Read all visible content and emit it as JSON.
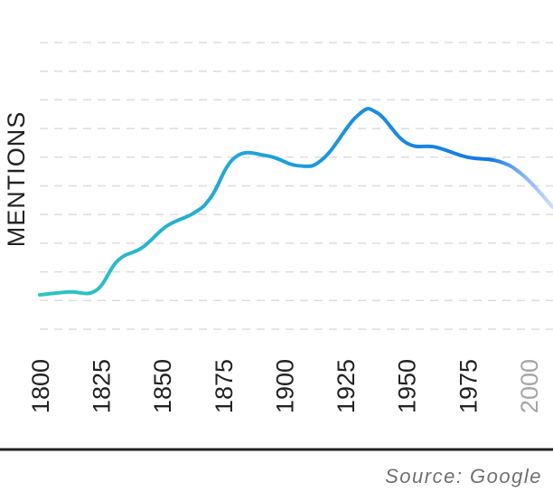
{
  "chart_data": {
    "type": "line",
    "ylabel": "MENTIONS",
    "xlabel": "",
    "title": "",
    "x_ticks": [
      {
        "label": "1800",
        "muted": false
      },
      {
        "label": "1825",
        "muted": false
      },
      {
        "label": "1850",
        "muted": false
      },
      {
        "label": "1875",
        "muted": false
      },
      {
        "label": "1900",
        "muted": false
      },
      {
        "label": "1925",
        "muted": false
      },
      {
        "label": "1950",
        "muted": false
      },
      {
        "label": "1975",
        "muted": false
      },
      {
        "label": "2000",
        "muted": true
      }
    ],
    "xlim": [
      1800,
      2010
    ],
    "ylim": [
      0,
      10
    ],
    "grid": true,
    "grid_lines": 10,
    "series": [
      {
        "points": [
          [
            1800,
            1.2
          ],
          [
            1812,
            1.3
          ],
          [
            1823,
            1.35
          ],
          [
            1832,
            2.4
          ],
          [
            1842,
            2.85
          ],
          [
            1852,
            3.6
          ],
          [
            1863,
            4.05
          ],
          [
            1870,
            4.6
          ],
          [
            1880,
            6.0
          ],
          [
            1893,
            6.05
          ],
          [
            1906,
            5.7
          ],
          [
            1916,
            5.95
          ],
          [
            1930,
            7.45
          ],
          [
            1938,
            7.55
          ],
          [
            1950,
            6.5
          ],
          [
            1962,
            6.35
          ],
          [
            1975,
            6.0
          ],
          [
            1988,
            5.85
          ],
          [
            1998,
            5.35
          ],
          [
            2010,
            4.25
          ]
        ],
        "fade_from_x": 1988
      }
    ],
    "colors": {
      "line_start": "#2ec8bf",
      "line_mid": "#1ea0dc",
      "line_end": "#1877e3",
      "line_fade": "#b6cdfb",
      "grid": "#dddddd",
      "axis": "#222222"
    }
  },
  "footer": {
    "source": "Source: Google"
  }
}
